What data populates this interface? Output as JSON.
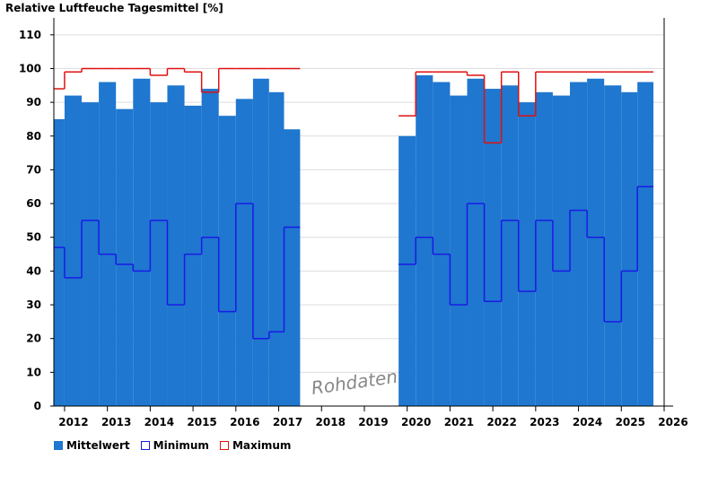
{
  "chart_data": {
    "type": "bar",
    "title": "Relative Luftfeuche Tagesmittel [%]",
    "xlabel": "",
    "ylabel": "",
    "xlim": [
      2011.75,
      2026.0
    ],
    "ylim": [
      0,
      115
    ],
    "y_ticks": [
      0,
      10,
      20,
      30,
      40,
      50,
      60,
      70,
      80,
      90,
      100,
      110
    ],
    "x_ticks": [
      {
        "label": "2012",
        "value": 2012.0
      },
      {
        "label": "2013",
        "value": 2013.0
      },
      {
        "label": "2014",
        "value": 2014.0
      },
      {
        "label": "2015",
        "value": 2015.0
      },
      {
        "label": "2016",
        "value": 2016.0
      },
      {
        "label": "2017",
        "value": 2017.0
      },
      {
        "label": "2018",
        "value": 2018.0
      },
      {
        "label": "2019",
        "value": 2019.0
      },
      {
        "label": "2020",
        "value": 2020.0
      },
      {
        "label": "2021",
        "value": 2021.0
      },
      {
        "label": "2022",
        "value": 2022.0
      },
      {
        "label": "2023",
        "value": 2023.0
      },
      {
        "label": "2024",
        "value": 2024.0
      },
      {
        "label": "2025",
        "value": 2025.0
      },
      {
        "label": "2026",
        "value": 2026.0
      }
    ],
    "grid": true,
    "legend_position": "bottom-left",
    "watermark": "Rohdaten",
    "colors": {
      "mittelwert": "#1f77cf",
      "minimum": "#1a1ae6",
      "maximum": "#e01010"
    },
    "series": [
      {
        "name": "Mittelwert",
        "x": [
          2011.8,
          2012.2,
          2012.6,
          2013.0,
          2013.4,
          2013.8,
          2014.2,
          2014.6,
          2015.0,
          2015.4,
          2015.8,
          2016.2,
          2016.6,
          2016.95,
          2017.3,
          2020.0,
          2020.4,
          2020.8,
          2021.2,
          2021.6,
          2022.0,
          2022.4,
          2022.8,
          2023.2,
          2023.6,
          2024.0,
          2024.4,
          2024.8,
          2025.2,
          2025.55
        ],
        "values": [
          85,
          92,
          90,
          96,
          88,
          97,
          90,
          95,
          89,
          94,
          86,
          91,
          97,
          93,
          82,
          80,
          98,
          96,
          92,
          97,
          94,
          95,
          90,
          93,
          92,
          96,
          97,
          95,
          93,
          96
        ]
      },
      {
        "name": "Minimum",
        "x": [
          2011.8,
          2012.2,
          2012.6,
          2013.0,
          2013.4,
          2013.8,
          2014.2,
          2014.6,
          2015.0,
          2015.4,
          2015.8,
          2016.2,
          2016.6,
          2016.95,
          2017.3,
          2020.0,
          2020.4,
          2020.8,
          2021.2,
          2021.6,
          2022.0,
          2022.4,
          2022.8,
          2023.2,
          2023.6,
          2024.0,
          2024.4,
          2024.8,
          2025.2,
          2025.55
        ],
        "values": [
          47,
          38,
          55,
          45,
          42,
          40,
          55,
          30,
          45,
          50,
          28,
          60,
          20,
          22,
          53,
          42,
          50,
          45,
          30,
          60,
          31,
          55,
          34,
          55,
          40,
          58,
          50,
          25,
          40,
          65
        ]
      },
      {
        "name": "Maximum",
        "x": [
          2011.8,
          2012.2,
          2012.6,
          2013.0,
          2013.4,
          2013.8,
          2014.2,
          2014.6,
          2015.0,
          2015.4,
          2015.8,
          2016.2,
          2016.6,
          2016.95,
          2017.3,
          2020.0,
          2020.4,
          2020.8,
          2021.2,
          2021.6,
          2022.0,
          2022.4,
          2022.8,
          2023.2,
          2023.6,
          2024.0,
          2024.4,
          2024.8,
          2025.2,
          2025.55
        ],
        "values": [
          94,
          99,
          100,
          100,
          100,
          100,
          98,
          100,
          99,
          93,
          100,
          100,
          100,
          100,
          100,
          86,
          99,
          99,
          99,
          98,
          78,
          99,
          86,
          99,
          99,
          99,
          99,
          99,
          99,
          99
        ]
      }
    ],
    "legend": [
      "Mittelwert",
      "Minimum",
      "Maximum"
    ]
  }
}
